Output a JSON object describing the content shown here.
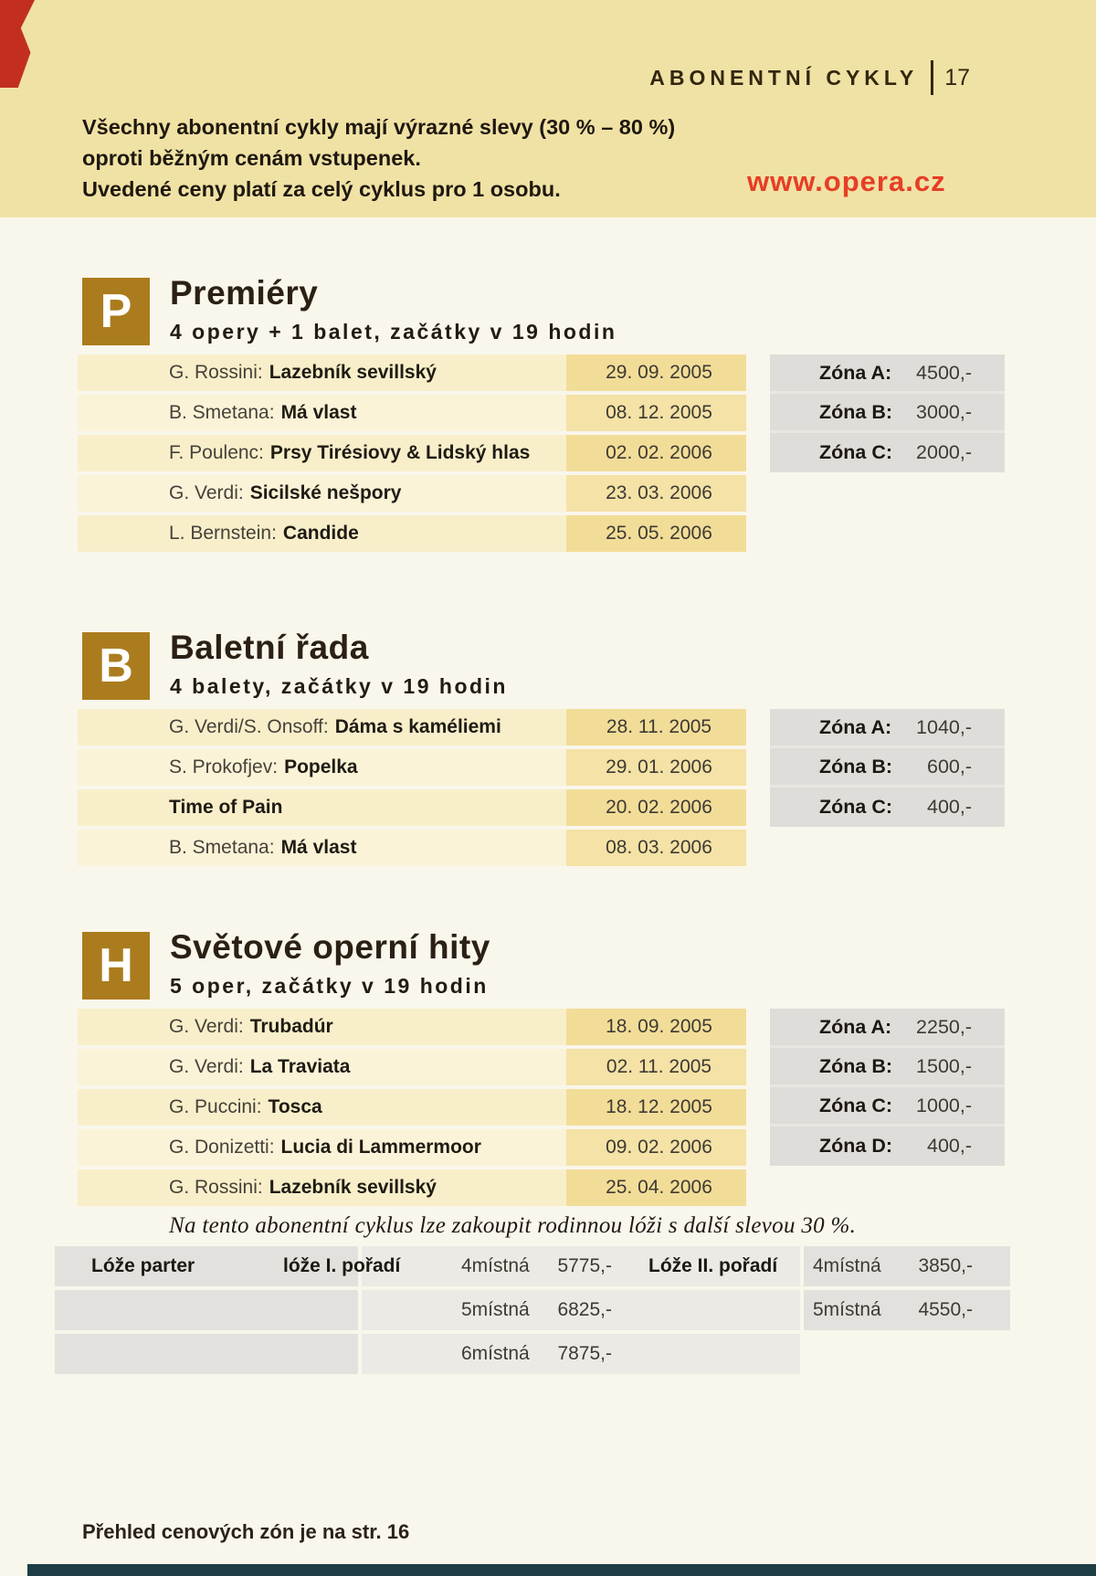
{
  "header": {
    "title": "ABONENTNÍ CYKLY",
    "page_number": "17",
    "intro_lines": [
      "Všechny abonentní cykly mají výrazné slevy (30 % – 80 %)",
      "oproti běžným cenám vstupenek.",
      "Uvedené ceny platí za celý cyklus pro 1 osobu."
    ],
    "website": "www.opera.cz"
  },
  "sections": [
    {
      "letter": "P",
      "title": "Premiéry",
      "subtitle": "4 opery + 1 balet, začátky v 19 hodin",
      "events": [
        {
          "composer": "G. Rossini:",
          "work": "Lazebník sevillský",
          "date": "29. 09. 2005"
        },
        {
          "composer": "B. Smetana:",
          "work": "Má vlast",
          "date": "08. 12. 2005"
        },
        {
          "composer": "F. Poulenc:",
          "work": "Prsy Tirésiovy & Lidský hlas",
          "date": "02. 02. 2006"
        },
        {
          "composer": "G. Verdi:",
          "work": "Sicilské nešpory",
          "date": "23. 03. 2006"
        },
        {
          "composer": "L. Bernstein:",
          "work": "Candide",
          "date": "25. 05. 2006"
        }
      ],
      "zones": [
        {
          "label": "Zóna A:",
          "price": "4500,-"
        },
        {
          "label": "Zóna B:",
          "price": "3000,-"
        },
        {
          "label": "Zóna C:",
          "price": "2000,-"
        }
      ]
    },
    {
      "letter": "B",
      "title": "Baletní řada",
      "subtitle": "4 balety, začátky v 19 hodin",
      "events": [
        {
          "composer": "G. Verdi/S. Onsoff:",
          "work": "Dáma s kaméliemi",
          "date": "28. 11. 2005"
        },
        {
          "composer": "S. Prokofjev:",
          "work": "Popelka",
          "date": "29. 01. 2006"
        },
        {
          "composer": "",
          "work": "Time of Pain",
          "date": "20. 02. 2006"
        },
        {
          "composer": "B. Smetana:",
          "work": "Má vlast",
          "date": "08. 03. 2006"
        }
      ],
      "zones": [
        {
          "label": "Zóna A:",
          "price": "1040,-"
        },
        {
          "label": "Zóna B:",
          "price": "600,-"
        },
        {
          "label": "Zóna C:",
          "price": "400,-"
        }
      ]
    },
    {
      "letter": "H",
      "title": "Světové operní hity",
      "subtitle": "5 oper, začátky v 19 hodin",
      "events": [
        {
          "composer": "G. Verdi:",
          "work": "Trubadúr",
          "date": "18. 09. 2005"
        },
        {
          "composer": "G. Verdi:",
          "work": "La Traviata",
          "date": "02. 11. 2005"
        },
        {
          "composer": "G. Puccini:",
          "work": "Tosca",
          "date": "18. 12. 2005"
        },
        {
          "composer": "G. Donizetti:",
          "work": "Lucia di Lammermoor",
          "date": "09. 02. 2006"
        },
        {
          "composer": "G. Rossini:",
          "work": "Lazebník sevillský",
          "date": "25. 04. 2006"
        }
      ],
      "zones": [
        {
          "label": "Zóna A:",
          "price": "2250,-"
        },
        {
          "label": "Zóna B:",
          "price": "1500,-"
        },
        {
          "label": "Zóna C:",
          "price": "1000,-"
        },
        {
          "label": "Zóna D:",
          "price": "400,-"
        }
      ],
      "note": "Na tento abonentní cyklus lze zakoupit rodinnou lóži s další slevou 30 %."
    }
  ],
  "loze_table": {
    "rows": [
      {
        "c1": "Lóže parter",
        "c2": "lóže I. pořadí",
        "c3": "4místná",
        "c4": "5775,-",
        "c5": "Lóže II. pořadí",
        "c6": "4místná",
        "c7": "3850,-"
      },
      {
        "c1": "",
        "c2": "",
        "c3": "5místná",
        "c4": "6825,-",
        "c5": "",
        "c6": "5místná",
        "c7": "4550,-"
      },
      {
        "c1": "",
        "c2": "",
        "c3": "6místná",
        "c4": "7875,-",
        "c5": "",
        "c6": "",
        "c7": ""
      }
    ]
  },
  "footer": "Přehled cenových zón je na str. 16",
  "colors": {
    "header_band": "#f0e2a4",
    "page_background": "#f9f6ec",
    "section_badge_gold": "#ab7c1d",
    "row_name_yellow": "#f8efca",
    "row_date_yellow": "#f2dd98",
    "zone_box_gray": "#dfddd9",
    "website_red": "#e63e26",
    "text_dark_brown": "#2a2013",
    "scan_edge_red": "#c22f20",
    "scan_edge_teal": "#1c3e44"
  }
}
